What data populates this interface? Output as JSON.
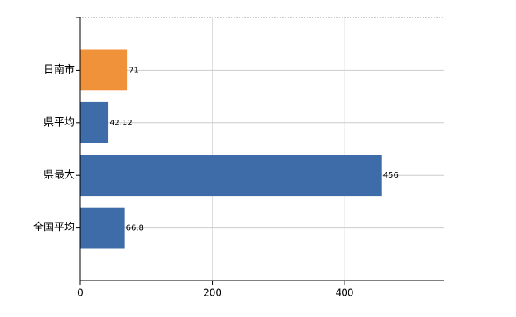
{
  "chart_data": {
    "type": "bar",
    "orientation": "horizontal",
    "categories": [
      "日南市",
      "県平均",
      "県最大",
      "全国平均"
    ],
    "values": [
      71,
      42.12,
      456,
      66.8
    ],
    "colors": [
      "#f0923a",
      "#3d6ca8",
      "#3d6ca8",
      "#3d6ca8"
    ],
    "xlim": [
      0,
      550
    ],
    "xticks": [
      0,
      200,
      400
    ],
    "grid": true
  }
}
